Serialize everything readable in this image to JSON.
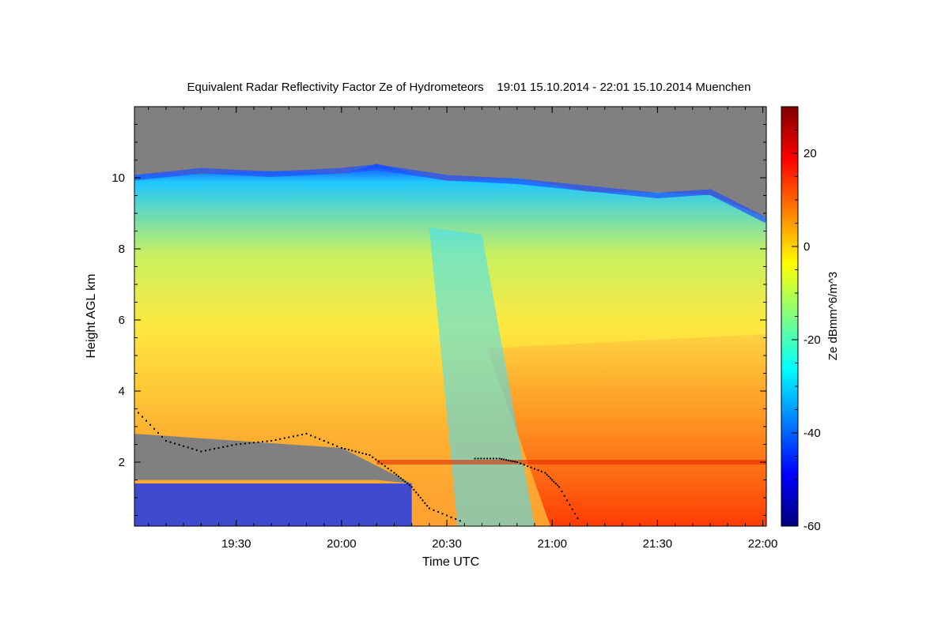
{
  "chart_data": {
    "type": "heatmap",
    "title": "Equivalent Radar Reflectivity Factor Ze of Hydrometeors    19:01 15.10.2014 - 22:01 15.10.2014 Muenchen",
    "xlabel": "Time UTC",
    "ylabel": "Height AGL km",
    "xlim": [
      "19:01",
      "22:01"
    ],
    "ylim": [
      0.2,
      12.0
    ],
    "x_ticks": [
      "19:30",
      "20:00",
      "20:30",
      "21:00",
      "21:30",
      "22:00"
    ],
    "y_ticks": [
      2,
      4,
      6,
      8,
      10
    ],
    "colorbar": {
      "label": "Ze dBmm^6/m^3",
      "range": [
        -60,
        30
      ],
      "ticks": [
        -60,
        -40,
        -20,
        0,
        20
      ],
      "colormap": "jet",
      "no_signal_color": "#808080"
    },
    "features": {
      "cloud_top_km": [
        10.0,
        10.2,
        10.1,
        10.2,
        10.3,
        10.0,
        9.9,
        9.7,
        9.5,
        9.6,
        8.8
      ],
      "cloud_top_times": [
        "19:01",
        "19:20",
        "19:40",
        "20:00",
        "20:10",
        "20:30",
        "20:50",
        "21:10",
        "21:30",
        "21:45",
        "22:01"
      ],
      "melting_layer_km": 2.0,
      "echo_gap": {
        "from": "19:01",
        "to": "20:20",
        "bottom_km": 1.5,
        "top_km": 2.8
      },
      "cloud_base_points": [
        [
          "19:01",
          3.5
        ],
        [
          "19:10",
          2.6
        ],
        [
          "19:20",
          2.3
        ],
        [
          "19:30",
          2.5
        ],
        [
          "19:40",
          2.6
        ],
        [
          "19:50",
          2.8
        ],
        [
          "20:00",
          2.4
        ],
        [
          "20:08",
          2.2
        ],
        [
          "20:15",
          1.7
        ],
        [
          "20:20",
          1.3
        ],
        [
          "20:25",
          0.7
        ],
        [
          "20:35",
          0.3
        ],
        [
          "20:38",
          2.1
        ],
        [
          "20:45",
          2.1
        ],
        [
          "20:50",
          2.0
        ],
        [
          "20:58",
          1.7
        ],
        [
          "21:02",
          1.3
        ],
        [
          "21:08",
          0.3
        ]
      ]
    }
  }
}
